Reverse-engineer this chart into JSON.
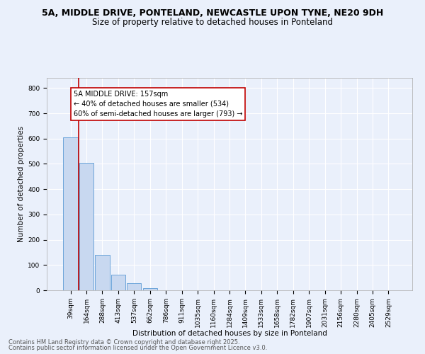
{
  "title_line1": "5A, MIDDLE DRIVE, PONTELAND, NEWCASTLE UPON TYNE, NE20 9DH",
  "title_line2": "Size of property relative to detached houses in Ponteland",
  "xlabel": "Distribution of detached houses by size in Ponteland",
  "ylabel": "Number of detached properties",
  "categories": [
    "39sqm",
    "164sqm",
    "288sqm",
    "413sqm",
    "537sqm",
    "662sqm",
    "786sqm",
    "911sqm",
    "1035sqm",
    "1160sqm",
    "1284sqm",
    "1409sqm",
    "1533sqm",
    "1658sqm",
    "1782sqm",
    "1907sqm",
    "2031sqm",
    "2156sqm",
    "2280sqm",
    "2405sqm",
    "2529sqm"
  ],
  "values": [
    605,
    505,
    140,
    62,
    27,
    8,
    0,
    0,
    0,
    0,
    0,
    0,
    0,
    0,
    0,
    0,
    0,
    0,
    0,
    0,
    0
  ],
  "bar_color": "#c8d8f0",
  "bar_edgecolor": "#5b9bd5",
  "vline_pos": 0.5,
  "vline_color": "#c00000",
  "annotation_text": "5A MIDDLE DRIVE: 157sqm\n← 40% of detached houses are smaller (534)\n60% of semi-detached houses are larger (793) →",
  "annotation_box_facecolor": "white",
  "annotation_box_edgecolor": "#c00000",
  "annotation_fontsize": 7,
  "ylim": [
    0,
    840
  ],
  "yticks": [
    0,
    100,
    200,
    300,
    400,
    500,
    600,
    700,
    800
  ],
  "background_color": "#eaf0fb",
  "grid_color": "white",
  "footer_line1": "Contains HM Land Registry data © Crown copyright and database right 2025.",
  "footer_line2": "Contains public sector information licensed under the Open Government Licence v3.0.",
  "title_fontsize": 9,
  "subtitle_fontsize": 8.5,
  "axis_label_fontsize": 7.5,
  "tick_fontsize": 6.5,
  "footer_fontsize": 6
}
